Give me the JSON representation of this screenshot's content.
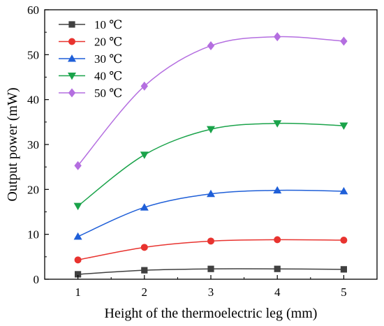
{
  "chart_data": {
    "type": "line",
    "xlabel": "Height of the thermoelectric leg (mm)",
    "ylabel": "Output power (mW)",
    "x": [
      1,
      2,
      3,
      4,
      5
    ],
    "xlim": [
      0.5,
      5.5
    ],
    "ylim": [
      0,
      60
    ],
    "xticks": [
      "1",
      "2",
      "3",
      "4",
      "5"
    ],
    "yticks": [
      "0",
      "10",
      "20",
      "30",
      "40",
      "50",
      "60"
    ],
    "grid": false,
    "legend_position": "top-left",
    "series": [
      {
        "name": "10 ℃",
        "color": "#404040",
        "marker": "square",
        "values": [
          1.1,
          2.0,
          2.3,
          2.3,
          2.2
        ]
      },
      {
        "name": "20 ℃",
        "color": "#e8332f",
        "marker": "circle",
        "values": [
          4.3,
          7.1,
          8.5,
          8.8,
          8.7
        ]
      },
      {
        "name": "30 ℃",
        "color": "#1f5fd8",
        "marker": "triangle-up",
        "values": [
          9.5,
          16.0,
          19.0,
          19.8,
          19.6
        ]
      },
      {
        "name": "40 ℃",
        "color": "#1aa34a",
        "marker": "triangle-down",
        "values": [
          16.3,
          27.7,
          33.4,
          34.7,
          34.2
        ]
      },
      {
        "name": "50 ℃",
        "color": "#b46ee0",
        "marker": "diamond",
        "values": [
          25.3,
          43.0,
          52.0,
          54.0,
          53.0
        ]
      }
    ]
  }
}
